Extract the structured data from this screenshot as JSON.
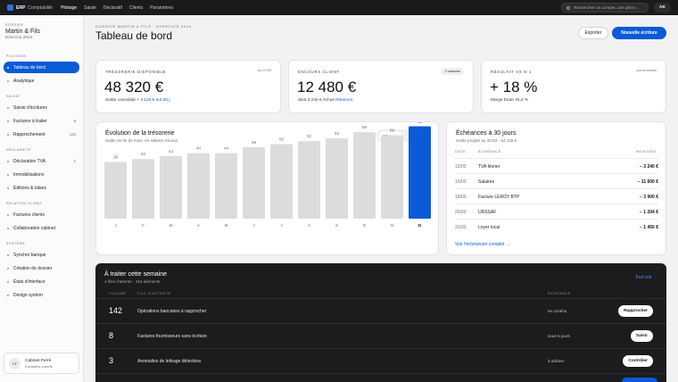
{
  "topbar": {
    "brand": "ERP",
    "brand_sub": "Comptabilité",
    "nav": [
      "Pilotage",
      "Saisie",
      "Déclaratif",
      "Clients",
      "Paramètres"
    ],
    "active_nav": "Pilotage",
    "search_placeholder": "Rechercher un compte, une pièce…",
    "user_initials": "AK"
  },
  "sidebar": {
    "kicker": "DOSSIER",
    "company": "Martin & Fils",
    "year": "Exercice 2024",
    "sections": [
      {
        "title": "PILOTAGE",
        "items": [
          {
            "label": "Tableau de bord",
            "count": "",
            "active": true
          },
          {
            "label": "Analytique",
            "count": ""
          }
        ]
      },
      {
        "title": "SAISIE",
        "items": [
          {
            "label": "Saisie d'écritures",
            "count": ""
          },
          {
            "label": "Factures à traiter",
            "count": "8"
          },
          {
            "label": "Rapprochement",
            "count": "142"
          }
        ]
      },
      {
        "title": "DÉCLARATIF",
        "items": [
          {
            "label": "Déclaration TVA",
            "count": "1"
          },
          {
            "label": "Immobilisations",
            "count": ""
          },
          {
            "label": "Éditions & bilans",
            "count": ""
          }
        ]
      },
      {
        "title": "RELATION CLIENT",
        "items": [
          {
            "label": "Factures clients",
            "count": ""
          },
          {
            "label": "Collaboration cabinet",
            "count": ""
          }
        ]
      },
      {
        "title": "SYSTÈME",
        "items": [
          {
            "label": "Synchro banque",
            "count": ""
          },
          {
            "label": "Création de dossier",
            "count": ""
          },
          {
            "label": "États d'interface",
            "count": ""
          },
          {
            "label": "Design system",
            "count": ""
          }
        ]
      }
    ],
    "footer": {
      "initials": "CF",
      "name": "Cabinet Ferré",
      "sub": "3 dossiers ouverts"
    }
  },
  "header": {
    "kicker": "DOSSIER MARTIN & FILS · EXERCICE 2024",
    "title": "Tableau de bord",
    "export_label": "Exporter",
    "new_label": "Nouvelle écriture"
  },
  "kpis": [
    {
      "label": "TRÉSORERIE DISPONIBLE",
      "badge": "au 07/03",
      "value": "48 320 €",
      "sub": "Solde consolidé",
      "sub_accent": "+ 4 120 € sur 30 j"
    },
    {
      "label": "ENCOURS CLIENT",
      "pill": "2 relances",
      "value": "12 480 €",
      "sub": "dont 3 240 € échus",
      "sub_accent": "Relancer"
    },
    {
      "label": "RÉSULTAT VS N-1",
      "badge": "cumul annuel",
      "value": "+ 18 %",
      "sub": "Marge brute 34,2 %",
      "sub_accent": ""
    }
  ],
  "treasury": {
    "title": "Évolution de la trésorerie",
    "subtitle": "Solde de fin de mois, en milliers d'euros",
    "toggle": [
      "12 mois",
      "6 mois"
    ],
    "toggle_active": "12 mois"
  },
  "chart_data": {
    "type": "bar",
    "categories": [
      "J",
      "F",
      "M",
      "A",
      "M",
      "J",
      "J",
      "A",
      "S",
      "O",
      "N",
      "D"
    ],
    "values": [
      38,
      40,
      42,
      44,
      44,
      48,
      50,
      52,
      54,
      58,
      56,
      62
    ],
    "highlight_index": 11,
    "colors": {
      "bar": "#dcdcdf",
      "highlight": "#0a5bd6"
    },
    "ylim": [
      0,
      70
    ]
  },
  "deadlines": {
    "title": "Échéances à 30 jours",
    "subtitle": "Solde projeté au 31/03 · 34 126 €",
    "headers": [
      "DATE",
      "ÉCHÉANCE",
      "MONTANT"
    ],
    "rows": [
      {
        "date": "12/03",
        "label": "TVA février",
        "amount": "− 3 240 €"
      },
      {
        "date": "15/03",
        "label": "Salaires",
        "amount": "− 11 600 €"
      },
      {
        "date": "18/03",
        "label": "Facture LEROY BTP",
        "amount": "− 3 900 €"
      },
      {
        "date": "25/03",
        "label": "URSSAF",
        "amount": "− 1 204 €"
      },
      {
        "date": "31/03",
        "label": "Loyer local",
        "amount": "− 1 450 €"
      }
    ],
    "link": "Voir l'échéancier complet →"
  },
  "todo": {
    "title": "À traiter cette semaine",
    "subtitle": "4 files d'attente · 154 éléments",
    "link": "Tout voir →",
    "headers": [
      "VOLUME",
      "FILE D'ATTENTE",
      "ÉCHÉANCE"
    ],
    "rows": [
      {
        "volume": "142",
        "queue": "Opérations bancaires à rapprocher",
        "due": "en continu",
        "action": "Rapprocher"
      },
      {
        "volume": "8",
        "queue": "Factures fournisseurs sans écriture",
        "due": "sous 5 jours",
        "action": "Saisir"
      },
      {
        "volume": "3",
        "queue": "Anomalies de lettrage détectées",
        "due": "à arbitrer",
        "action": "Contrôler"
      }
    ]
  }
}
